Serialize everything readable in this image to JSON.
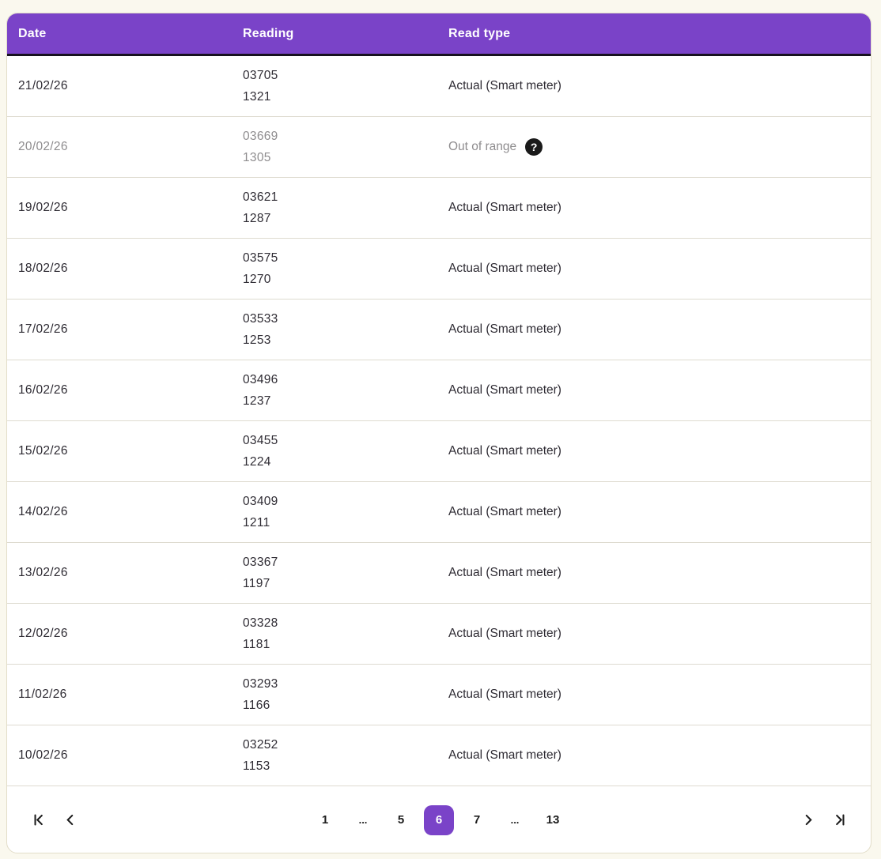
{
  "table": {
    "columns": [
      {
        "key": "date",
        "label": "Date"
      },
      {
        "key": "reading",
        "label": "Reading"
      },
      {
        "key": "read_type",
        "label": "Read type"
      }
    ],
    "rows": [
      {
        "date": "21/02/26",
        "reading_line1": "03705",
        "reading_line2": "1321",
        "read_type": "Actual (Smart meter)",
        "muted": false,
        "info_icon": false
      },
      {
        "date": "20/02/26",
        "reading_line1": "03669",
        "reading_line2": "1305",
        "read_type": "Out of range",
        "muted": true,
        "info_icon": true
      },
      {
        "date": "19/02/26",
        "reading_line1": "03621",
        "reading_line2": "1287",
        "read_type": "Actual (Smart meter)",
        "muted": false,
        "info_icon": false
      },
      {
        "date": "18/02/26",
        "reading_line1": "03575",
        "reading_line2": "1270",
        "read_type": "Actual (Smart meter)",
        "muted": false,
        "info_icon": false
      },
      {
        "date": "17/02/26",
        "reading_line1": "03533",
        "reading_line2": "1253",
        "read_type": "Actual (Smart meter)",
        "muted": false,
        "info_icon": false
      },
      {
        "date": "16/02/26",
        "reading_line1": "03496",
        "reading_line2": "1237",
        "read_type": "Actual (Smart meter)",
        "muted": false,
        "info_icon": false
      },
      {
        "date": "15/02/26",
        "reading_line1": "03455",
        "reading_line2": "1224",
        "read_type": "Actual (Smart meter)",
        "muted": false,
        "info_icon": false
      },
      {
        "date": "14/02/26",
        "reading_line1": "03409",
        "reading_line2": "1211",
        "read_type": "Actual (Smart meter)",
        "muted": false,
        "info_icon": false
      },
      {
        "date": "13/02/26",
        "reading_line1": "03367",
        "reading_line2": "1197",
        "read_type": "Actual (Smart meter)",
        "muted": false,
        "info_icon": false
      },
      {
        "date": "12/02/26",
        "reading_line1": "03328",
        "reading_line2": "1181",
        "read_type": "Actual (Smart meter)",
        "muted": false,
        "info_icon": false
      },
      {
        "date": "11/02/26",
        "reading_line1": "03293",
        "reading_line2": "1166",
        "read_type": "Actual (Smart meter)",
        "muted": false,
        "info_icon": false
      },
      {
        "date": "10/02/26",
        "reading_line1": "03252",
        "reading_line2": "1153",
        "read_type": "Actual (Smart meter)",
        "muted": false,
        "info_icon": false
      }
    ]
  },
  "icons": {
    "info_icon_glyph": "?",
    "first_page": "first-page-icon",
    "previous_page": "chevron-left-icon",
    "next_page": "chevron-right-icon",
    "last_page": "last-page-icon"
  },
  "pagination": {
    "items": [
      {
        "label": "1",
        "type": "page",
        "active": false
      },
      {
        "label": "...",
        "type": "ellipsis",
        "active": false
      },
      {
        "label": "5",
        "type": "page",
        "active": false
      },
      {
        "label": "6",
        "type": "page",
        "active": true
      },
      {
        "label": "7",
        "type": "page",
        "active": false
      },
      {
        "label": "...",
        "type": "ellipsis",
        "active": false
      },
      {
        "label": "13",
        "type": "page",
        "active": false
      }
    ],
    "active_page": "6",
    "total_pages": "13"
  },
  "colors": {
    "page_background": "#faf8ee",
    "card_background": "#ffffff",
    "card_border": "#e2ddc9",
    "header_purple": "#7a43c8",
    "header_underline": "#17111f",
    "row_separator": "#dedbd0",
    "text_dark": "#2e2b33",
    "text_muted": "#8e8c8e",
    "info_icon_background": "#1a1a1a",
    "active_page_background": "#7a43c8"
  }
}
